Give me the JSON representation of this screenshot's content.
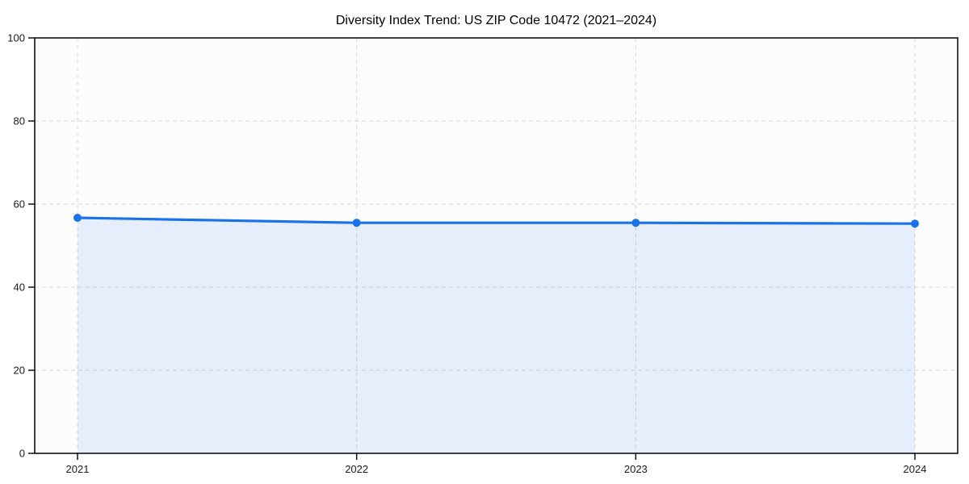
{
  "chart_data": {
    "type": "line",
    "title": "Diversity Index Trend: US ZIP Code 10472 (2021–2024)",
    "x": [
      2021,
      2022,
      2023,
      2024
    ],
    "values": [
      56.7,
      55.5,
      55.5,
      55.3
    ],
    "xlabel": "",
    "ylabel": "",
    "ylim": [
      0,
      100
    ],
    "yticks": [
      0,
      20,
      40,
      60,
      80,
      100
    ],
    "xtick_labels": [
      "2021",
      "2022",
      "2023",
      "2024"
    ],
    "grid": "dashed",
    "legend": "none",
    "area_fill_to_zero": true,
    "markers": "circle"
  },
  "colors": {
    "line": "#1a73e8",
    "marker": "#1a73e8",
    "area_fill": "rgba(26,115,232,0.10)",
    "grid": "#d9d9d9",
    "axis": "#111111",
    "tick_text": "#1a1a1a",
    "plot_background": "#fcfcfc",
    "figure_background": "#ffffff"
  }
}
